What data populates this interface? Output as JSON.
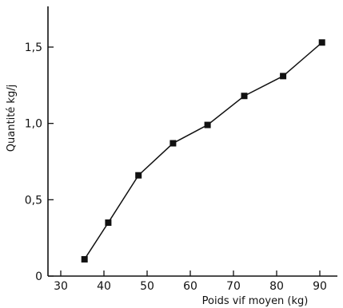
{
  "chart_data": {
    "type": "line",
    "title": "",
    "xlabel": "Poids vif moyen (kg)",
    "ylabel": "Quantité kg/j",
    "xlim": [
      30,
      92
    ],
    "ylim": [
      0,
      1.75
    ],
    "x_ticks": [
      30,
      40,
      50,
      60,
      70,
      80,
      90
    ],
    "x_tick_labels": [
      "30",
      "40",
      "50",
      "60",
      "70",
      "80",
      "90"
    ],
    "y_ticks": [
      0,
      0.5,
      1.0,
      1.5
    ],
    "y_tick_labels": [
      "0",
      "0,5",
      "1,0",
      "1,5"
    ],
    "grid": false,
    "marker": "square",
    "series": [
      {
        "x": [
          35.5,
          41,
          48,
          56,
          64,
          72.5,
          81.5,
          90.5
        ],
        "y": [
          0.11,
          0.35,
          0.66,
          0.87,
          0.99,
          1.18,
          1.31,
          1.53
        ]
      }
    ]
  }
}
